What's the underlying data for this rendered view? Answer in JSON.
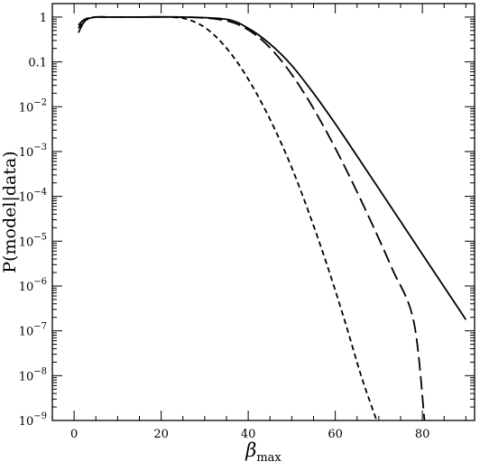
{
  "chart_data": {
    "type": "line",
    "title": "",
    "xlabel": {
      "symbol": "β",
      "subscript": "max"
    },
    "ylabel": "P(model|data)",
    "xlim": [
      -5,
      92
    ],
    "ylim_log10": [
      -9,
      0.3
    ],
    "y_scale": "log",
    "grid": false,
    "legend": "none",
    "x_ticks": [
      {
        "value": 0,
        "label": "0"
      },
      {
        "value": 20,
        "label": "20"
      },
      {
        "value": 40,
        "label": "40"
      },
      {
        "value": 60,
        "label": "60"
      },
      {
        "value": 80,
        "label": "80"
      }
    ],
    "y_ticks": [
      {
        "log10": 0,
        "base": "1",
        "exp": ""
      },
      {
        "log10": -1,
        "base": "0.1",
        "exp": ""
      },
      {
        "log10": -2,
        "base": "10",
        "exp": "−2"
      },
      {
        "log10": -3,
        "base": "10",
        "exp": "−3"
      },
      {
        "log10": -4,
        "base": "10",
        "exp": "−4"
      },
      {
        "log10": -5,
        "base": "10",
        "exp": "−5"
      },
      {
        "log10": -6,
        "base": "10",
        "exp": "−6"
      },
      {
        "log10": -7,
        "base": "10",
        "exp": "−7"
      },
      {
        "log10": -8,
        "base": "10",
        "exp": "−8"
      },
      {
        "log10": -9,
        "base": "10",
        "exp": "−9"
      }
    ],
    "series": [
      {
        "style": "solid",
        "x": [
          1,
          2,
          3,
          5,
          8,
          15,
          25,
          35,
          40,
          45,
          50,
          55,
          60,
          65,
          70,
          75,
          80,
          85,
          90
        ],
        "log10_y": [
          -0.35,
          -0.15,
          -0.05,
          0,
          0,
          0,
          0,
          -0.05,
          -0.25,
          -0.6,
          -1.08,
          -1.7,
          -2.38,
          -3.1,
          -3.83,
          -4.56,
          -5.29,
          -6.02,
          -6.75
        ]
      },
      {
        "style": "long-dash",
        "x": [
          1,
          2,
          3,
          5,
          8,
          15,
          25,
          33,
          38,
          43,
          48,
          53,
          58,
          63,
          68,
          73,
          78,
          80.5
        ],
        "log10_y": [
          -0.18,
          -0.08,
          -0.03,
          0,
          0,
          0,
          0,
          -0.05,
          -0.18,
          -0.5,
          -1.02,
          -1.72,
          -2.56,
          -3.5,
          -4.52,
          -5.6,
          -6.78,
          -9.0
        ]
      },
      {
        "style": "short-dash",
        "x": [
          1,
          2,
          3,
          5,
          8,
          15,
          22,
          26,
          30,
          34,
          38,
          42,
          46,
          50,
          54,
          58,
          62,
          66,
          69.5
        ],
        "log10_y": [
          -0.25,
          -0.1,
          -0.03,
          0,
          0,
          0,
          0,
          -0.05,
          -0.23,
          -0.58,
          -1.08,
          -1.72,
          -2.48,
          -3.36,
          -4.38,
          -5.5,
          -6.72,
          -8.02,
          -9.0
        ]
      }
    ]
  }
}
